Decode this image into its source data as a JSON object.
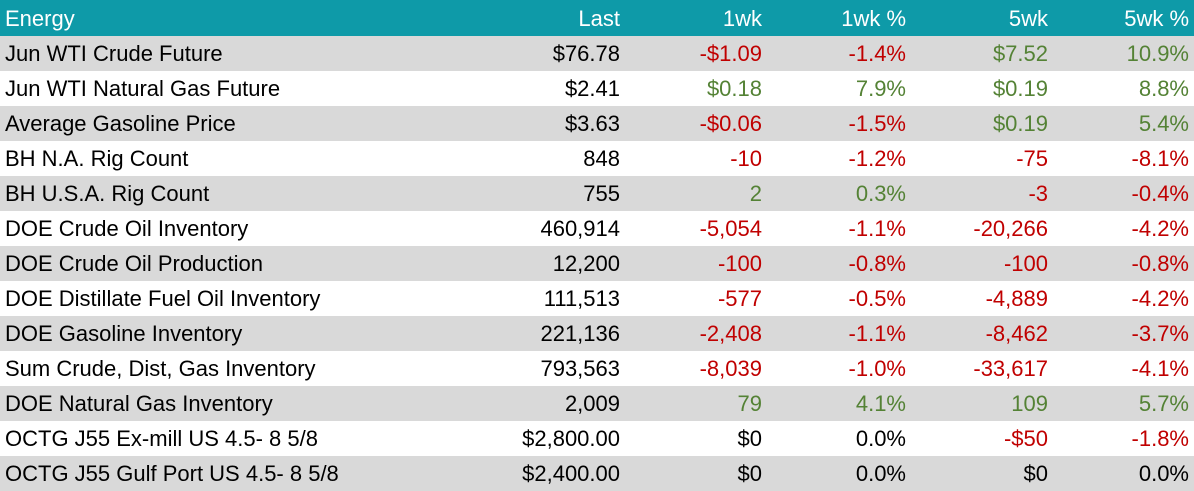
{
  "header": [
    "Energy",
    "Last",
    "1wk",
    "1wk %",
    "5wk",
    "5wk %"
  ],
  "colors": {
    "header_bg": "#0e9aa8",
    "negative": "#c00000",
    "positive": "#548235",
    "row_shade": "#d9d9d9"
  },
  "rows": [
    {
      "name": "Jun WTI Crude Future",
      "last": "$76.78",
      "wk1": "-$1.09",
      "wk1_sign": "neg",
      "wk1_pct": "-1.4%",
      "wk1_pct_sign": "neg",
      "wk5": "$7.52",
      "wk5_sign": "pos",
      "wk5_pct": "10.9%",
      "wk5_pct_sign": "pos"
    },
    {
      "name": "Jun WTI Natural Gas Future",
      "last": "$2.41",
      "wk1": "$0.18",
      "wk1_sign": "pos",
      "wk1_pct": "7.9%",
      "wk1_pct_sign": "pos",
      "wk5": "$0.19",
      "wk5_sign": "pos",
      "wk5_pct": "8.8%",
      "wk5_pct_sign": "pos"
    },
    {
      "name": "Average Gasoline Price",
      "last": "$3.63",
      "wk1": "-$0.06",
      "wk1_sign": "neg",
      "wk1_pct": "-1.5%",
      "wk1_pct_sign": "neg",
      "wk5": "$0.19",
      "wk5_sign": "pos",
      "wk5_pct": "5.4%",
      "wk5_pct_sign": "pos"
    },
    {
      "name": "BH N.A. Rig Count",
      "last": "848",
      "wk1": "-10",
      "wk1_sign": "neg",
      "wk1_pct": "-1.2%",
      "wk1_pct_sign": "neg",
      "wk5": "-75",
      "wk5_sign": "neg",
      "wk5_pct": "-8.1%",
      "wk5_pct_sign": "neg"
    },
    {
      "name": "BH U.S.A. Rig Count",
      "last": "755",
      "wk1": "2",
      "wk1_sign": "pos",
      "wk1_pct": "0.3%",
      "wk1_pct_sign": "pos",
      "wk5": "-3",
      "wk5_sign": "neg",
      "wk5_pct": "-0.4%",
      "wk5_pct_sign": "neg"
    },
    {
      "name": "DOE Crude Oil Inventory",
      "last": "460,914",
      "wk1": "-5,054",
      "wk1_sign": "neg",
      "wk1_pct": "-1.1%",
      "wk1_pct_sign": "neg",
      "wk5": "-20,266",
      "wk5_sign": "neg",
      "wk5_pct": "-4.2%",
      "wk5_pct_sign": "neg"
    },
    {
      "name": "DOE Crude Oil Production",
      "last": "12,200",
      "wk1": "-100",
      "wk1_sign": "neg",
      "wk1_pct": "-0.8%",
      "wk1_pct_sign": "neg",
      "wk5": "-100",
      "wk5_sign": "neg",
      "wk5_pct": "-0.8%",
      "wk5_pct_sign": "neg"
    },
    {
      "name": "DOE Distillate Fuel Oil Inventory",
      "last": "111,513",
      "wk1": "-577",
      "wk1_sign": "neg",
      "wk1_pct": "-0.5%",
      "wk1_pct_sign": "neg",
      "wk5": "-4,889",
      "wk5_sign": "neg",
      "wk5_pct": "-4.2%",
      "wk5_pct_sign": "neg"
    },
    {
      "name": "DOE Gasoline Inventory",
      "last": "221,136",
      "wk1": "-2,408",
      "wk1_sign": "neg",
      "wk1_pct": "-1.1%",
      "wk1_pct_sign": "neg",
      "wk5": "-8,462",
      "wk5_sign": "neg",
      "wk5_pct": "-3.7%",
      "wk5_pct_sign": "neg"
    },
    {
      "name": "Sum Crude, Dist, Gas Inventory",
      "last": "793,563",
      "wk1": "-8,039",
      "wk1_sign": "neg",
      "wk1_pct": "-1.0%",
      "wk1_pct_sign": "neg",
      "wk5": "-33,617",
      "wk5_sign": "neg",
      "wk5_pct": "-4.1%",
      "wk5_pct_sign": "neg"
    },
    {
      "name": "DOE Natural Gas Inventory",
      "last": "2,009",
      "wk1": "79",
      "wk1_sign": "pos",
      "wk1_pct": "4.1%",
      "wk1_pct_sign": "pos",
      "wk5": "109",
      "wk5_sign": "pos",
      "wk5_pct": "5.7%",
      "wk5_pct_sign": "pos"
    },
    {
      "name": "OCTG J55 Ex-mill US 4.5- 8 5/8",
      "last": "$2,800.00",
      "wk1": "$0",
      "wk1_sign": "neu",
      "wk1_pct": "0.0%",
      "wk1_pct_sign": "neu",
      "wk5": "-$50",
      "wk5_sign": "neg",
      "wk5_pct": "-1.8%",
      "wk5_pct_sign": "neg"
    },
    {
      "name": "OCTG J55 Gulf Port US 4.5- 8 5/8",
      "last": "$2,400.00",
      "wk1": "$0",
      "wk1_sign": "neu",
      "wk1_pct": "0.0%",
      "wk1_pct_sign": "neu",
      "wk5": "$0",
      "wk5_sign": "neu",
      "wk5_pct": "0.0%",
      "wk5_pct_sign": "neu"
    }
  ]
}
